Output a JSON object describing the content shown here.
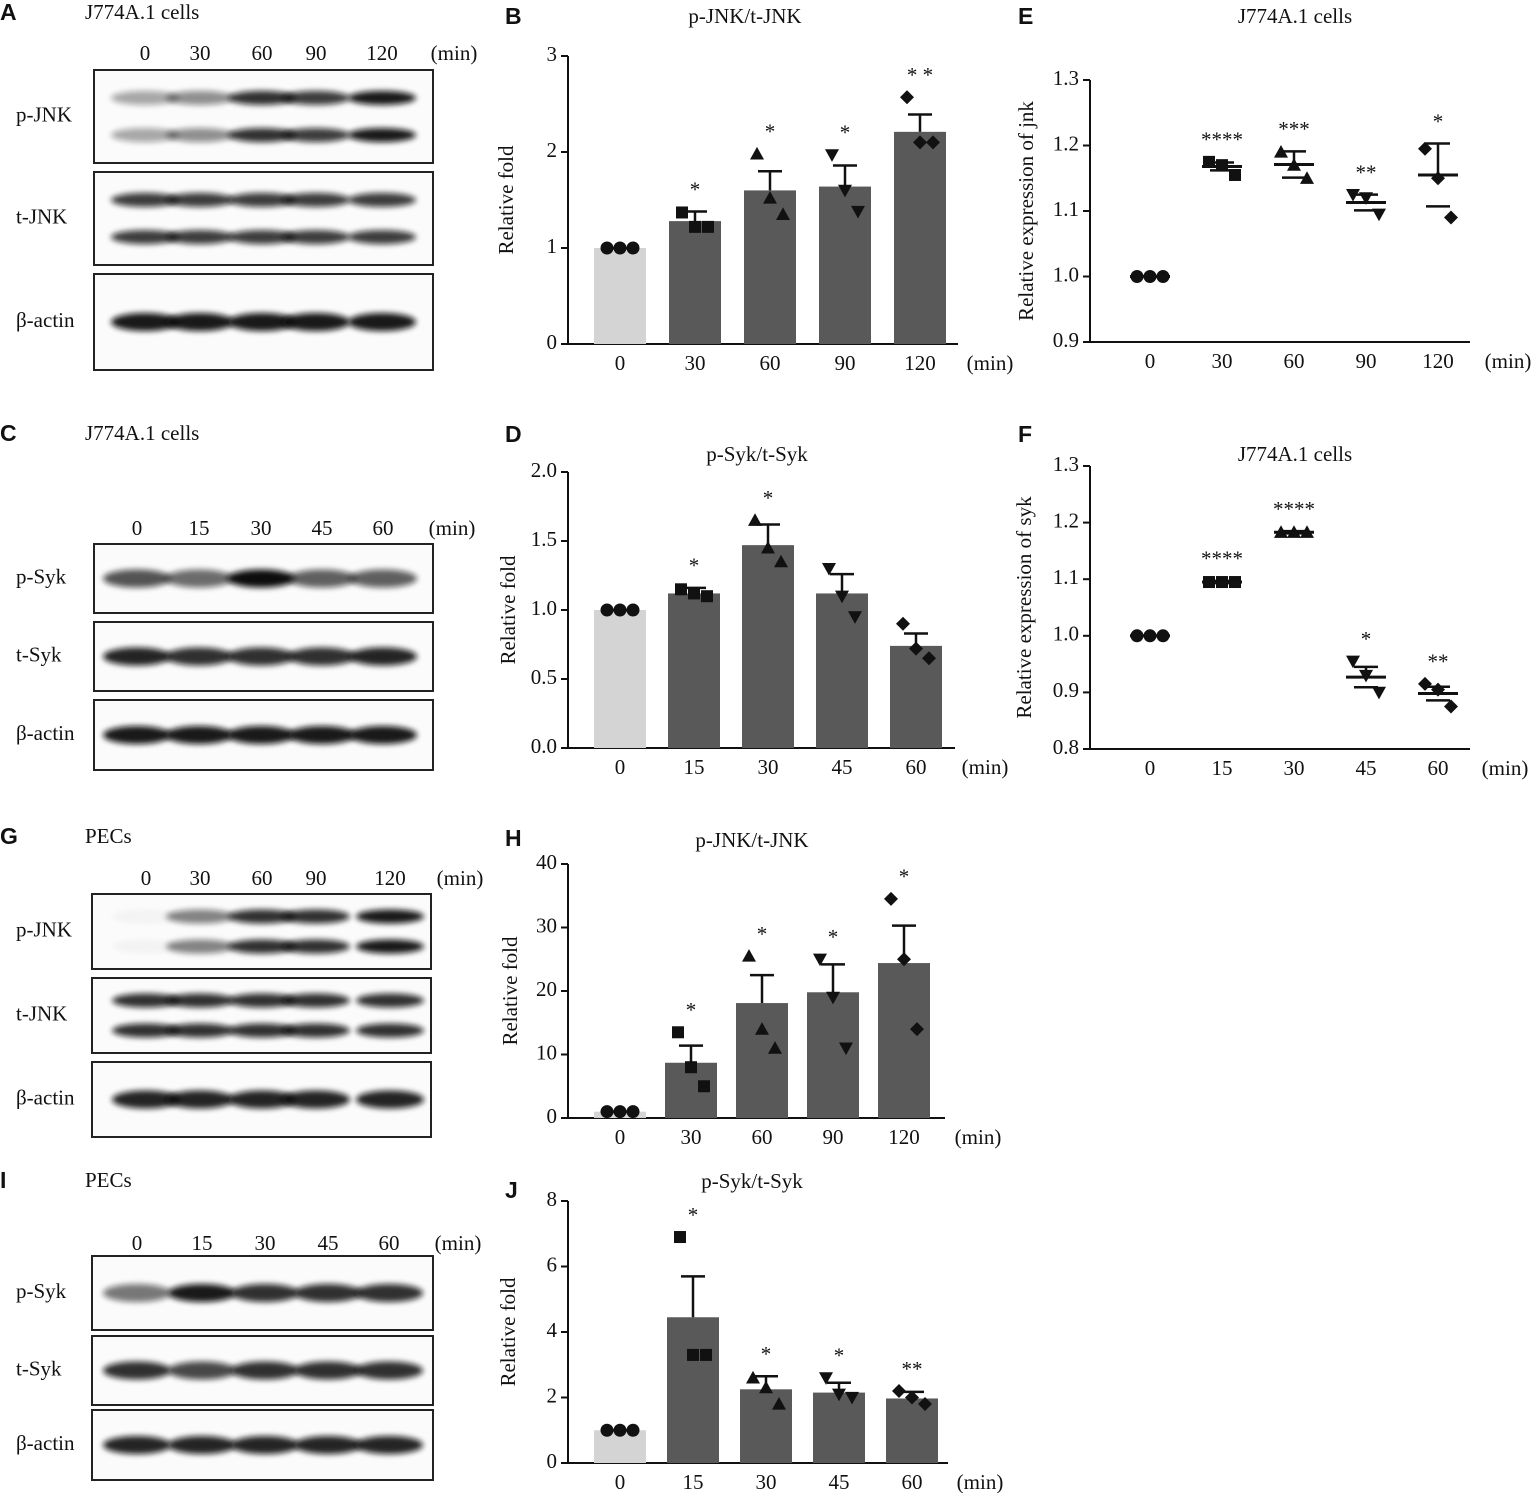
{
  "blots": [
    {
      "panel": "A",
      "title": "J774A.1 cells",
      "lanes": [
        "0",
        "30",
        "60",
        "90",
        "120"
      ],
      "unit": "(min)",
      "rows": [
        "p-JNK",
        "t-JNK",
        "β-actin"
      ]
    },
    {
      "panel": "C",
      "title": "J774A.1 cells",
      "lanes": [
        "0",
        "15",
        "30",
        "45",
        "60"
      ],
      "unit": "(min)",
      "rows": [
        "p-Syk",
        "t-Syk",
        "β-actin"
      ]
    },
    {
      "panel": "G",
      "title": "PECs",
      "lanes": [
        "0",
        "30",
        "60",
        "90",
        "120"
      ],
      "unit": "(min)",
      "rows": [
        "p-JNK",
        "t-JNK",
        "β-actin"
      ]
    },
    {
      "panel": "I",
      "title": "PECs",
      "lanes": [
        "0",
        "15",
        "30",
        "45",
        "60"
      ],
      "unit": "(min)",
      "rows": [
        "p-Syk",
        "t-Syk",
        "β-actin"
      ]
    }
  ],
  "chart_data": [
    {
      "type": "bar",
      "panel": "B",
      "title": "p-JNK/t-JNK",
      "ylabel": "Relative fold",
      "x_unit": "(min)",
      "categories": [
        "0",
        "30",
        "60",
        "90",
        "120"
      ],
      "values": [
        1,
        1.28,
        1.6,
        1.64,
        2.21
      ],
      "errors": [
        0,
        0.1,
        0.2,
        0.22,
        0.18
      ],
      "points": [
        [
          1,
          1,
          1
        ],
        [
          1.37,
          1.22,
          1.22
        ],
        [
          1.98,
          1.52,
          1.35
        ],
        [
          1.97,
          1.6,
          1.38
        ],
        [
          2.57,
          2.1,
          2.1
        ]
      ],
      "markers": [
        "circle",
        "square",
        "triangle-up",
        "triangle-down",
        "diamond"
      ],
      "annotations": [
        null,
        "*",
        "*",
        "*",
        "* *"
      ],
      "colors": [
        "#d4d4d4",
        "#595959",
        "#595959",
        "#595959",
        "#595959"
      ],
      "ylim": [
        0,
        3
      ],
      "yticks": [
        0,
        1,
        2,
        3
      ]
    },
    {
      "type": "bar",
      "panel": "D",
      "title": "p-Syk/t-Syk",
      "ylabel": "Relative fold",
      "x_unit": "(min)",
      "categories": [
        "0",
        "15",
        "30",
        "45",
        "60"
      ],
      "values": [
        1,
        1.12,
        1.47,
        1.12,
        0.74
      ],
      "errors": [
        0,
        0.04,
        0.15,
        0.14,
        0.09
      ],
      "points": [
        [
          1,
          1,
          1
        ],
        [
          1.15,
          1.12,
          1.1
        ],
        [
          1.65,
          1.45,
          1.35
        ],
        [
          1.3,
          1.1,
          0.95
        ],
        [
          0.9,
          0.72,
          0.65
        ]
      ],
      "markers": [
        "circle",
        "square",
        "triangle-up",
        "triangle-down",
        "diamond"
      ],
      "annotations": [
        null,
        "*",
        "*",
        null,
        null
      ],
      "colors": [
        "#d4d4d4",
        "#595959",
        "#595959",
        "#595959",
        "#595959"
      ],
      "ylim": [
        0,
        2
      ],
      "yticks": [
        {
          "value": 0,
          "label": "0.0"
        },
        0.5,
        {
          "value": 1,
          "label": "1.0"
        },
        1.5,
        {
          "value": 2,
          "label": "2.0"
        }
      ]
    },
    {
      "type": "dot",
      "panel": "E",
      "title": "J774A.1 cells",
      "ylabel": "Relative expression of jnk",
      "x_unit": "(min)",
      "categories": [
        "0",
        "30",
        "60",
        "90",
        "120"
      ],
      "means": [
        1,
        1.168,
        1.171,
        1.113,
        1.155
      ],
      "errors": [
        0,
        0.006,
        0.02,
        0.012,
        0.048
      ],
      "points": [
        [
          1,
          1,
          1
        ],
        [
          1.175,
          1.17,
          1.155
        ],
        [
          1.19,
          1.17,
          1.15
        ],
        [
          1.125,
          1.12,
          1.095
        ],
        [
          1.195,
          1.15,
          1.09
        ]
      ],
      "markers": [
        "circle",
        "square",
        "triangle-up",
        "triangle-down",
        "diamond"
      ],
      "annotations": [
        null,
        "****",
        "***",
        "**",
        "*"
      ],
      "ylim": [
        0.9,
        1.3
      ],
      "yticks": [
        0.9,
        {
          "value": 1,
          "label": "1.0"
        },
        1.1,
        1.2,
        1.3
      ]
    },
    {
      "type": "dot",
      "panel": "F",
      "title": "J774A.1 cells",
      "ylabel": "Relative expression of syk",
      "x_unit": "(min)",
      "categories": [
        "0",
        "15",
        "30",
        "45",
        "60"
      ],
      "means": [
        1,
        1.095,
        1.183,
        0.927,
        0.898
      ],
      "errors": [
        0,
        0.002,
        0.002,
        0.018,
        0.012
      ],
      "points": [
        [
          1,
          1,
          1
        ],
        [
          1.095,
          1.095,
          1.095
        ],
        [
          1.183,
          1.183,
          1.183
        ],
        [
          0.955,
          0.93,
          0.9
        ],
        [
          0.915,
          0.905,
          0.875
        ]
      ],
      "markers": [
        "circle",
        "square",
        "triangle-up",
        "triangle-down",
        "diamond"
      ],
      "annotations": [
        null,
        "****",
        "****",
        "*",
        "**"
      ],
      "ylim": [
        0.8,
        1.3
      ],
      "yticks": [
        0.8,
        0.9,
        {
          "value": 1,
          "label": "1.0"
        },
        1.1,
        1.2,
        1.3
      ]
    },
    {
      "type": "bar",
      "panel": "H",
      "title": "p-JNK/t-JNK",
      "ylabel": "Relative fold",
      "x_unit": "(min)",
      "categories": [
        "0",
        "30",
        "60",
        "90",
        "120"
      ],
      "values": [
        1,
        8.7,
        18.1,
        19.8,
        24.4
      ],
      "errors": [
        0,
        2.7,
        4.4,
        4.4,
        5.9
      ],
      "points": [
        [
          1,
          1,
          1
        ],
        [
          13.5,
          8,
          5
        ],
        [
          25.5,
          14,
          11
        ],
        [
          25,
          19,
          11
        ],
        [
          34.5,
          25,
          14
        ]
      ],
      "markers": [
        "circle",
        "square",
        "triangle-up",
        "triangle-down",
        "diamond"
      ],
      "annotations": [
        null,
        "*",
        "*",
        "*",
        "*"
      ],
      "colors": [
        "#d4d4d4",
        "#595959",
        "#595959",
        "#595959",
        "#595959"
      ],
      "ylim": [
        0,
        40
      ],
      "yticks": [
        0,
        10,
        20,
        30,
        40
      ]
    },
    {
      "type": "bar",
      "panel": "J",
      "title": "p-Syk/t-Syk",
      "ylabel": "Relative fold",
      "x_unit": "(min)",
      "categories": [
        "0",
        "15",
        "30",
        "45",
        "60"
      ],
      "values": [
        1,
        4.45,
        2.25,
        2.15,
        1.97
      ],
      "errors": [
        0,
        1.25,
        0.4,
        0.3,
        0.2
      ],
      "points": [
        [
          1,
          1,
          1
        ],
        [
          6.9,
          3.3,
          3.3
        ],
        [
          2.6,
          2.3,
          1.8
        ],
        [
          2.6,
          2.1,
          2.0
        ],
        [
          2.2,
          2.0,
          1.8
        ]
      ],
      "markers": [
        "circle",
        "square",
        "triangle-up",
        "triangle-down",
        "diamond"
      ],
      "annotations": [
        null,
        "*",
        "*",
        "*",
        "**"
      ],
      "colors": [
        "#d4d4d4",
        "#595959",
        "#595959",
        "#595959",
        "#595959"
      ],
      "ylim": [
        0,
        8
      ],
      "yticks": [
        0,
        2,
        4,
        6,
        8
      ]
    }
  ]
}
